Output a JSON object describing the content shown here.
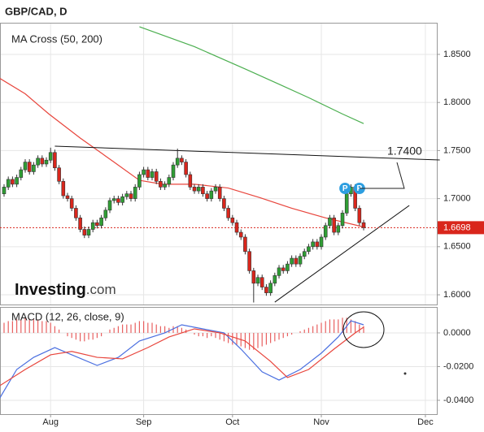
{
  "chart_data": [
    {
      "type": "candlestick",
      "title": "GBP/CAD, D",
      "subtitle": "MA Cross (50, 200)",
      "logo": {
        "name": "Investing",
        "suffix": ".com"
      },
      "up_color": "#2f9e34",
      "down_color": "#d9261c",
      "xlim": [
        -0.96,
        102.3
      ],
      "xticks": [
        {
          "value": 11,
          "label": "Aug"
        },
        {
          "value": 33,
          "label": "Sep"
        },
        {
          "value": 54,
          "label": "Oct"
        },
        {
          "value": 75,
          "label": "Nov"
        },
        {
          "value": 99.6,
          "label": "Dec"
        }
      ],
      "ylim": [
        1.5899,
        1.8829
      ],
      "yticks": [
        {
          "value": 1.6,
          "label": "1.6000"
        },
        {
          "value": 1.65,
          "label": "1.6500"
        },
        {
          "value": 1.7,
          "label": "1.7000"
        },
        {
          "value": 1.75,
          "label": "1.7500"
        },
        {
          "value": 1.8,
          "label": "1.8000"
        },
        {
          "value": 1.85,
          "label": "1.8500"
        }
      ],
      "grid": true,
      "open": [
        1.705,
        1.712,
        1.72,
        1.715,
        1.722,
        1.73,
        1.738,
        1.728,
        1.735,
        1.742,
        1.736,
        1.74,
        1.748,
        1.732,
        1.718,
        1.703,
        1.7,
        1.69,
        1.68,
        1.668,
        1.662,
        1.668,
        1.675,
        1.672,
        1.68,
        1.688,
        1.698,
        1.7,
        1.696,
        1.702,
        1.705,
        1.7,
        1.712,
        1.725,
        1.73,
        1.722,
        1.728,
        1.718,
        1.712,
        1.715,
        1.722,
        1.735,
        1.742,
        1.738,
        1.725,
        1.712,
        1.708,
        1.712,
        1.705,
        1.7,
        1.708,
        1.712,
        1.7,
        1.69,
        1.68,
        1.675,
        1.665,
        1.66,
        1.645,
        1.625,
        1.612,
        1.618,
        1.608,
        1.602,
        1.612,
        1.62,
        1.628,
        1.625,
        1.632,
        1.638,
        1.632,
        1.64,
        1.645,
        1.65,
        1.655,
        1.65,
        1.66,
        1.672,
        1.68,
        1.665,
        1.672,
        1.685,
        1.705,
        1.712,
        1.69,
        1.675
      ],
      "high": [
        1.715,
        1.723,
        1.723,
        1.725,
        1.733,
        1.741,
        1.741,
        1.738,
        1.745,
        1.745,
        1.743,
        1.753,
        1.751,
        1.735,
        1.721,
        1.706,
        1.703,
        1.693,
        1.683,
        1.671,
        1.671,
        1.678,
        1.678,
        1.683,
        1.691,
        1.701,
        1.703,
        1.703,
        1.705,
        1.708,
        1.708,
        1.715,
        1.728,
        1.733,
        1.733,
        1.731,
        1.731,
        1.721,
        1.718,
        1.725,
        1.738,
        1.752,
        1.745,
        1.741,
        1.728,
        1.715,
        1.715,
        1.715,
        1.708,
        1.711,
        1.715,
        1.715,
        1.703,
        1.693,
        1.683,
        1.678,
        1.668,
        1.663,
        1.648,
        1.628,
        1.621,
        1.621,
        1.611,
        1.615,
        1.623,
        1.631,
        1.631,
        1.635,
        1.641,
        1.641,
        1.643,
        1.648,
        1.653,
        1.658,
        1.658,
        1.663,
        1.675,
        1.683,
        1.683,
        1.675,
        1.688,
        1.708,
        1.715,
        1.715,
        1.693,
        1.678
      ],
      "low": [
        1.702,
        1.709,
        1.712,
        1.712,
        1.719,
        1.727,
        1.725,
        1.725,
        1.732,
        1.733,
        1.733,
        1.737,
        1.729,
        1.715,
        1.7,
        1.697,
        1.687,
        1.677,
        1.665,
        1.659,
        1.659,
        1.665,
        1.669,
        1.669,
        1.677,
        1.685,
        1.695,
        1.693,
        1.693,
        1.699,
        1.697,
        1.697,
        1.709,
        1.722,
        1.719,
        1.719,
        1.715,
        1.709,
        1.709,
        1.712,
        1.719,
        1.732,
        1.735,
        1.722,
        1.709,
        1.705,
        1.705,
        1.702,
        1.697,
        1.697,
        1.705,
        1.697,
        1.687,
        1.677,
        1.672,
        1.662,
        1.657,
        1.642,
        1.622,
        1.592,
        1.609,
        1.605,
        1.599,
        1.599,
        1.609,
        1.617,
        1.622,
        1.622,
        1.629,
        1.629,
        1.629,
        1.637,
        1.642,
        1.647,
        1.647,
        1.647,
        1.657,
        1.669,
        1.662,
        1.662,
        1.669,
        1.682,
        1.702,
        1.687,
        1.672,
        1.667
      ],
      "close": [
        1.712,
        1.72,
        1.715,
        1.722,
        1.73,
        1.738,
        1.728,
        1.735,
        1.742,
        1.736,
        1.74,
        1.748,
        1.732,
        1.718,
        1.703,
        1.7,
        1.69,
        1.68,
        1.668,
        1.662,
        1.668,
        1.675,
        1.672,
        1.68,
        1.688,
        1.698,
        1.7,
        1.696,
        1.702,
        1.705,
        1.7,
        1.712,
        1.725,
        1.73,
        1.722,
        1.728,
        1.718,
        1.712,
        1.715,
        1.722,
        1.735,
        1.742,
        1.738,
        1.725,
        1.712,
        1.708,
        1.712,
        1.705,
        1.7,
        1.708,
        1.712,
        1.7,
        1.69,
        1.68,
        1.675,
        1.665,
        1.66,
        1.645,
        1.625,
        1.612,
        1.618,
        1.608,
        1.602,
        1.612,
        1.62,
        1.628,
        1.625,
        1.632,
        1.638,
        1.632,
        1.64,
        1.645,
        1.65,
        1.655,
        1.65,
        1.66,
        1.672,
        1.68,
        1.665,
        1.672,
        1.685,
        1.705,
        1.712,
        1.69,
        1.675,
        1.6698
      ],
      "lines": [
        {
          "color": "#e8453c",
          "x": [
            -1,
            5,
            10.6,
            18,
            26,
            32,
            37.5,
            45,
            53,
            60.5,
            68,
            76,
            85.5
          ],
          "values": [
            1.825,
            1.809,
            1.788,
            1.763,
            1.738,
            1.719,
            1.715,
            1.715,
            1.711,
            1.701,
            1.69,
            1.68,
            1.67
          ]
        },
        {
          "color": "#4caf50",
          "x": [
            32,
            45,
            57,
            65,
            72,
            80,
            85
          ],
          "values": [
            1.8787,
            1.858,
            1.8348,
            1.819,
            1.805,
            1.788,
            1.778
          ]
        }
      ],
      "trendlines": [
        {
          "x": [
            12,
            103
          ],
          "values": [
            1.7546,
            1.7402
          ]
        },
        {
          "x": [
            64,
            95.8
          ],
          "values": [
            1.5924,
            1.6929
          ]
        }
      ],
      "annotation": "1.7400",
      "markers": [
        {
          "label": "P",
          "x": 80.6
        },
        {
          "label": "P",
          "x": 84
        }
      ],
      "last": {
        "value": 1.6698,
        "label": "1.6698"
      }
    },
    {
      "type": "macd",
      "title": "MACD (12, 26, close, 9)",
      "xlim": [
        -0.96,
        102.3
      ],
      "ylim": [
        -0.0482,
        0.0154
      ],
      "yticks": [
        {
          "value": 0,
          "label": "0.0000"
        },
        {
          "value": -0.02,
          "label": "-0.0200"
        },
        {
          "value": -0.04,
          "label": "-0.0400"
        }
      ],
      "histogram_color": "#e86060",
      "histogram": [
        0.006,
        0.007,
        0.007,
        0.008,
        0.008,
        0.009,
        0.008,
        0.008,
        0.008,
        0.007,
        0.007,
        0.006,
        0.004,
        0.002,
        0.0,
        -0.002,
        -0.003,
        -0.004,
        -0.005,
        -0.005,
        -0.004,
        -0.004,
        -0.003,
        -0.002,
        0.0,
        0.002,
        0.003,
        0.004,
        0.005,
        0.005,
        0.005,
        0.006,
        0.007,
        0.007,
        0.006,
        0.006,
        0.005,
        0.004,
        0.004,
        0.003,
        0.004,
        0.004,
        0.003,
        0.002,
        0.0,
        -0.001,
        -0.002,
        -0.002,
        -0.003,
        -0.002,
        -0.003,
        -0.004,
        -0.005,
        -0.006,
        -0.007,
        -0.007,
        -0.008,
        -0.009,
        -0.01,
        -0.01,
        -0.009,
        -0.008,
        -0.007,
        -0.006,
        -0.005,
        -0.004,
        -0.003,
        -0.002,
        -0.001,
        0.0,
        0.001,
        0.002,
        0.003,
        0.004,
        0.005,
        0.006,
        0.007,
        0.008,
        0.008,
        0.008,
        0.009,
        0.009,
        0.008,
        0.007,
        0.005,
        0.004
      ],
      "lines": [
        {
          "color": "#4a6fe0",
          "x": [
            -1,
            3,
            7,
            12,
            16,
            22,
            27,
            32,
            38,
            42,
            47,
            52,
            56,
            61,
            65,
            70,
            75,
            79,
            82,
            85
          ],
          "values": [
            -0.0386,
            -0.0217,
            -0.0145,
            -0.0087,
            -0.013,
            -0.0193,
            -0.0145,
            -0.0048,
            0,
            0.0048,
            0.0024,
            0,
            -0.0096,
            -0.0231,
            -0.028,
            -0.0217,
            -0.012,
            -0.0024,
            0.0072,
            0.0048
          ]
        },
        {
          "color": "#e8453c",
          "x": [
            -1,
            5,
            11,
            16,
            22,
            28,
            34,
            39,
            45,
            51,
            57,
            63,
            67,
            72,
            78,
            83,
            85
          ],
          "values": [
            -0.0313,
            -0.0217,
            -0.013,
            -0.011,
            -0.0145,
            -0.0154,
            -0.0087,
            -0.0024,
            0.0024,
            0,
            -0.0048,
            -0.0169,
            -0.0265,
            -0.0217,
            -0.0096,
            0,
            0.0034
          ]
        }
      ]
    }
  ]
}
